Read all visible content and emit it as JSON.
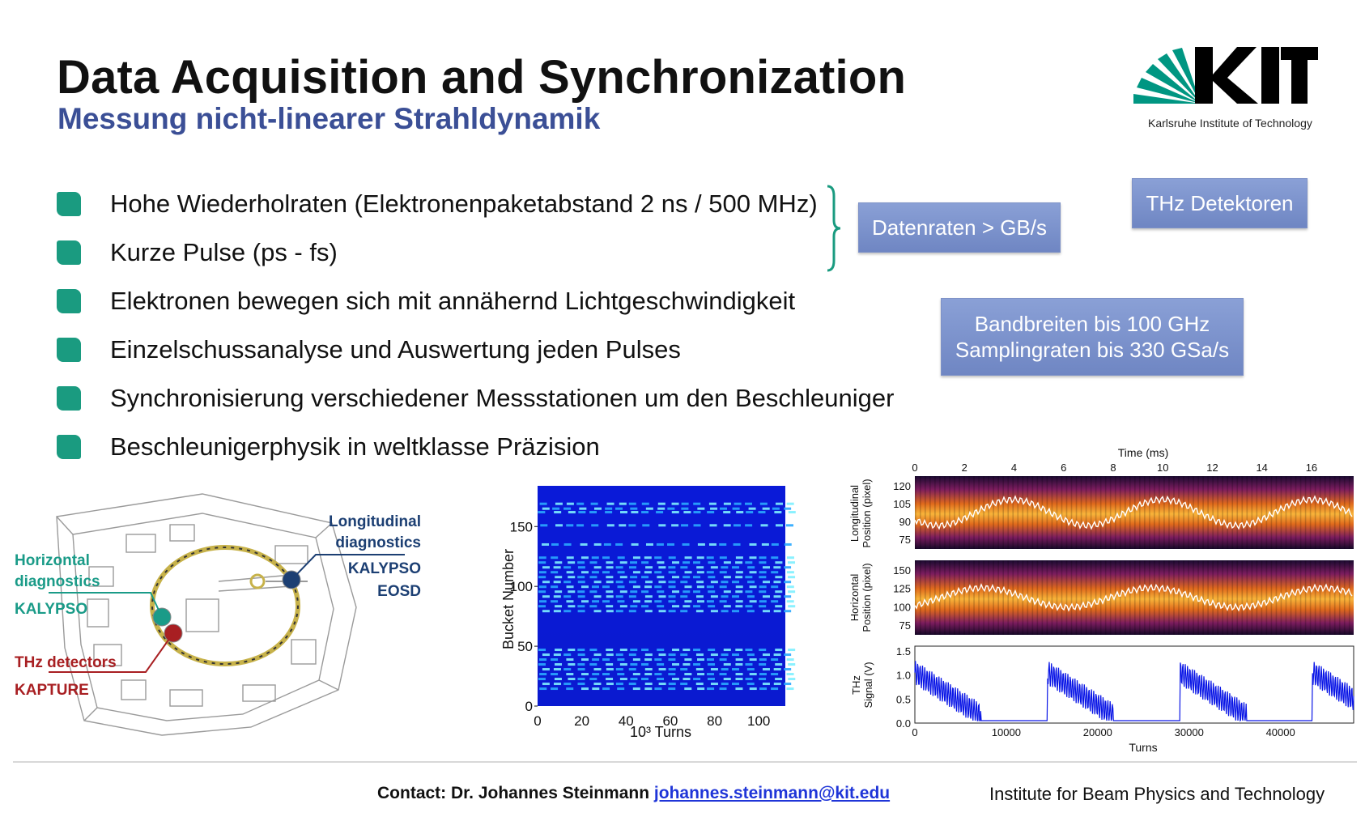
{
  "header": {
    "title": "Data Acquisition and Synchronization",
    "subtitle": "Messung nicht-linearer Strahldynamik"
  },
  "logo": {
    "text": "KIT",
    "caption": "Karlsruhe Institute of Technology"
  },
  "bullets": [
    "Hohe Wiederholraten (Elektronenpaketabstand 2 ns / 500 MHz)",
    "Kurze Pulse (ps - fs)",
    "Elektronen bewegen sich mit annähernd Lichtgeschwindigkeit",
    "Einzelschussanalyse und Auswertung jeden Pulses",
    "Synchronisierung verschiedener Messstationen um den Beschleuniger",
    "Beschleunigerphysik in weltklasse Präzision"
  ],
  "callouts": {
    "data_rates": "Datenraten > GB/s",
    "thz": "THz Detektoren",
    "bandwidth_line1": "Bandbreiten bis 100 GHz",
    "bandwidth_line2": "Samplingraten bis 330 GSa/s"
  },
  "accelerator_labels": {
    "horizontal_line1": "Horizontal",
    "horizontal_line2": "diagnostics",
    "horizontal_system": "KALYPSO",
    "longitudinal_line1": "Longitudinal",
    "longitudinal_line2": "diagnostics",
    "longitudinal_system1": "KALYPSO",
    "longitudinal_system2": "EOSD",
    "thz_line1": "THz detectors",
    "thz_system": "KAPTURE"
  },
  "colors": {
    "teal": "#1a9b80",
    "navy": "#1c3f73",
    "red": "#a81f22",
    "subtitle": "#3b4f96",
    "callout": "#7b91c9"
  },
  "chart_data": [
    {
      "type": "heatmap",
      "ylabel": "Bucket Number",
      "xlabel": "10³ Turns",
      "x_ticks": [
        "0",
        "20",
        "40",
        "60",
        "80",
        "100"
      ],
      "y_ticks": [
        "0",
        "50",
        "100",
        "150"
      ],
      "xlim": [
        0,
        112
      ],
      "ylim": [
        0,
        184
      ]
    },
    {
      "type": "heatmap",
      "title": "Time (ms)",
      "ylabel": "Longitudinal Position (pixel)",
      "x_ticks": [
        "0",
        "2",
        "4",
        "6",
        "8",
        "10",
        "12",
        "14",
        "16"
      ],
      "y_ticks": [
        "120",
        "105",
        "90",
        "75"
      ]
    },
    {
      "type": "heatmap",
      "ylabel": "Horizontal Position (pixel)",
      "y_ticks": [
        "150",
        "125",
        "100",
        "75"
      ]
    },
    {
      "type": "line",
      "ylabel": "THz Signal (V)",
      "xlabel": "Turns",
      "x_ticks": [
        "0",
        "10000",
        "20000",
        "30000",
        "40000"
      ],
      "y_ticks": [
        "1.5",
        "1.0",
        "0.5",
        "0.0"
      ],
      "ylim": [
        0,
        1.6
      ],
      "xlim": [
        0,
        48000
      ]
    }
  ],
  "footer": {
    "contact_prefix": "Contact: Dr. Johannes Steinmann",
    "contact_email": "johannes.steinmann@kit.edu",
    "institute": "Institute for Beam Physics and Technology"
  }
}
